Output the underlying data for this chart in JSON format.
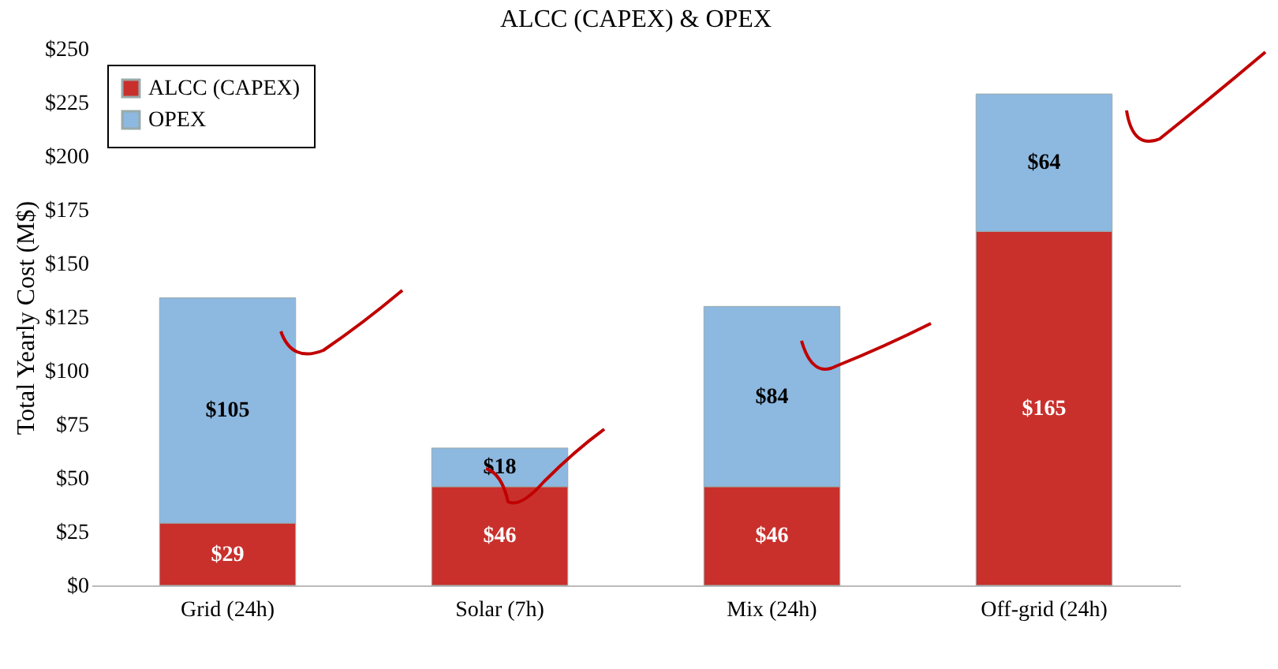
{
  "chart_data": {
    "type": "bar",
    "stacked": true,
    "title": "ALCC (CAPEX) & OPEX",
    "ylabel": "Total Yearly Cost (M$)",
    "categories": [
      "Grid (24h)",
      "Solar (7h)",
      "Mix (24h)",
      "Off-grid (24h)"
    ],
    "series": [
      {
        "name": "ALCC (CAPEX)",
        "color": "#c9302c",
        "values": [
          29,
          46,
          46,
          165
        ],
        "value_labels": [
          "$29",
          "$46",
          "$46",
          "$165"
        ]
      },
      {
        "name": "OPEX",
        "color": "#8db8e0",
        "values": [
          105,
          18,
          84,
          64
        ],
        "value_labels": [
          "$105",
          "$18",
          "$84",
          "$64"
        ]
      }
    ],
    "ylim": [
      0,
      250
    ],
    "yticks": [
      {
        "value": 0,
        "label": "$0"
      },
      {
        "value": 25,
        "label": "$25"
      },
      {
        "value": 50,
        "label": "$50"
      },
      {
        "value": 75,
        "label": "$75"
      },
      {
        "value": 100,
        "label": "$100"
      },
      {
        "value": 125,
        "label": "$125"
      },
      {
        "value": 150,
        "label": "$150"
      },
      {
        "value": 175,
        "label": "$175"
      },
      {
        "value": 200,
        "label": "$200"
      },
      {
        "value": 225,
        "label": "$225"
      },
      {
        "value": 250,
        "label": "$250"
      }
    ],
    "grid": false,
    "legend": "top left"
  }
}
